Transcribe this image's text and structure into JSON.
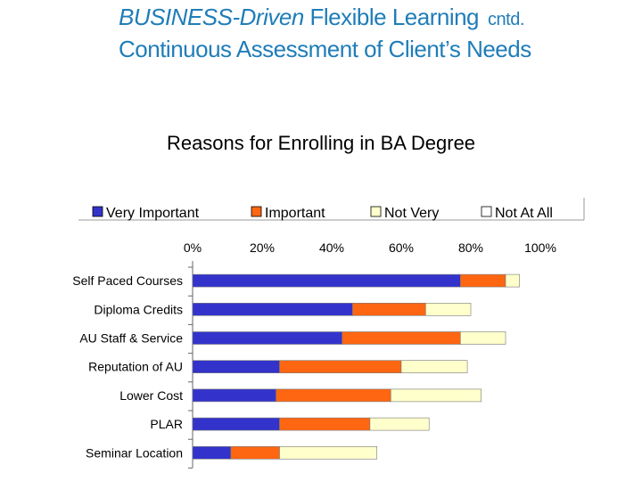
{
  "slide": {
    "title_line1_italic": "BUSINESS-Driven",
    "title_line1_rest": " Flexible Learning",
    "title_line1_suffix": "cntd.",
    "title_line2": "Continuous Assessment of Client’s Needs",
    "chart_heading": "Reasons for Enrolling in BA Degree"
  },
  "chart_data": {
    "type": "bar",
    "orientation": "horizontal",
    "stacked": true,
    "percent_stacked": true,
    "title": "Reasons for Enrolling in BA Degree",
    "categories": [
      "Self Paced Courses",
      "Diploma Credits",
      "AU Staff & Service",
      "Reputation of AU",
      "Lower Cost",
      "PLAR",
      "Seminar Location"
    ],
    "series": [
      {
        "name": "Very Important",
        "color": "#3333cc",
        "values": [
          77,
          46,
          43,
          25,
          24,
          25,
          11
        ]
      },
      {
        "name": "Important",
        "color": "#ff6611",
        "values": [
          13,
          21,
          34,
          35,
          33,
          26,
          14
        ]
      },
      {
        "name": "Not Very",
        "color": "#ffffcc",
        "values": [
          4,
          13,
          13,
          19,
          26,
          17,
          28
        ]
      },
      {
        "name": "Not At All",
        "color": "#ffffff",
        "values": [
          0,
          0,
          0,
          0,
          0,
          0,
          0
        ]
      }
    ],
    "xlim": [
      0,
      100
    ],
    "xticks": [
      "0%",
      "20%",
      "40%",
      "60%",
      "80%",
      "100%"
    ],
    "x_axis_position": "top",
    "legend_position": "top",
    "grid": false
  }
}
